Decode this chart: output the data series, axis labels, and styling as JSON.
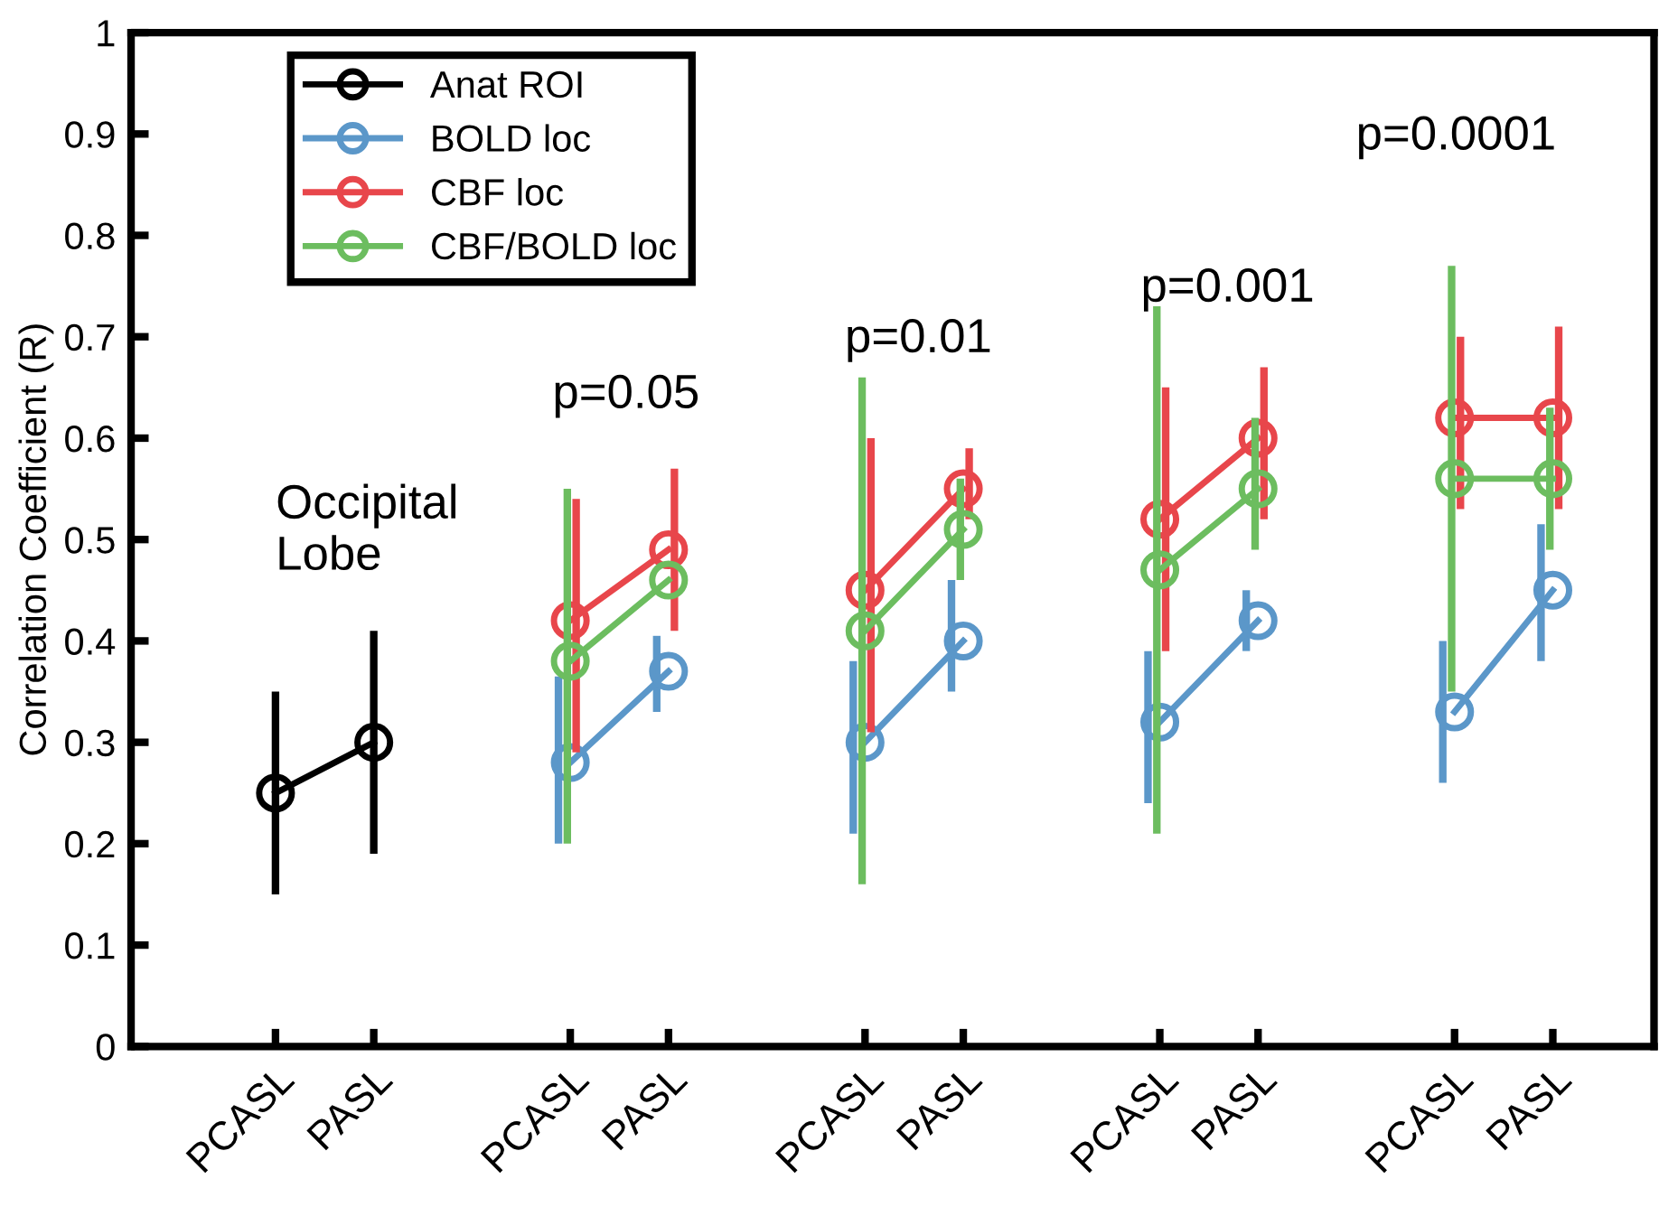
{
  "chart_data": {
    "type": "line",
    "ylabel": "Correlation Coefficient (R)",
    "categories": [
      "PCASL",
      "PASL",
      null,
      "PCASL",
      "PASL",
      null,
      "PCASL",
      "PASL",
      null,
      "PCASL",
      "PASL",
      null,
      "PCASL",
      "PASL"
    ],
    "ylim": [
      0,
      1
    ],
    "yticks": [
      0,
      0.1,
      0.2,
      0.3,
      0.4,
      0.5,
      0.6,
      0.7,
      0.8,
      0.9,
      1
    ],
    "grid": false,
    "legend": "top left",
    "marker": "circle",
    "line_style": "solid",
    "series": [
      {
        "name": "Anat ROI",
        "color": "#000000",
        "values": [
          0.25,
          0.3,
          null,
          null,
          null,
          null,
          null,
          null,
          null,
          null,
          null,
          null,
          null,
          null
        ],
        "errors": [
          [
            0.15,
            0.35
          ],
          [
            0.19,
            0.41
          ],
          null,
          null,
          null,
          null,
          null,
          null,
          null,
          null,
          null,
          null,
          null,
          null
        ]
      },
      {
        "name": "BOLD loc",
        "color": "#5b97c9",
        "values": [
          null,
          null,
          null,
          0.28,
          0.37,
          null,
          0.3,
          0.4,
          null,
          0.32,
          0.42,
          null,
          0.33,
          0.45
        ],
        "errors": [
          null,
          null,
          null,
          [
            0.2,
            0.365
          ],
          [
            0.33,
            0.405
          ],
          null,
          [
            0.21,
            0.38
          ],
          [
            0.35,
            0.46
          ],
          null,
          [
            0.24,
            0.39
          ],
          [
            0.39,
            0.45
          ],
          null,
          [
            0.26,
            0.4
          ],
          [
            0.38,
            0.515
          ]
        ]
      },
      {
        "name": "CBF loc",
        "color": "#e8464b",
        "values": [
          null,
          null,
          null,
          0.42,
          0.49,
          null,
          0.45,
          0.55,
          null,
          0.52,
          0.6,
          null,
          0.62,
          0.62
        ],
        "errors": [
          null,
          null,
          null,
          [
            0.29,
            0.54
          ],
          [
            0.41,
            0.57
          ],
          null,
          [
            0.31,
            0.6
          ],
          [
            0.52,
            0.59
          ],
          null,
          [
            0.39,
            0.65
          ],
          [
            0.52,
            0.67
          ],
          null,
          [
            0.53,
            0.7
          ],
          [
            0.53,
            0.71
          ]
        ]
      },
      {
        "name": "CBF/BOLD loc",
        "color": "#6cbd5f",
        "values": [
          null,
          null,
          null,
          0.38,
          0.46,
          null,
          0.41,
          0.51,
          null,
          0.47,
          0.55,
          null,
          0.56,
          0.56
        ],
        "errors": [
          null,
          null,
          null,
          [
            0.2,
            0.55
          ],
          null,
          null,
          [
            0.16,
            0.66
          ],
          [
            0.46,
            0.56
          ],
          null,
          [
            0.21,
            0.73
          ],
          [
            0.49,
            0.62
          ],
          null,
          [
            0.35,
            0.77
          ],
          [
            0.49,
            0.63
          ]
        ]
      }
    ],
    "annotations": [
      "Occipital\nLobe",
      "p=0.05",
      "p=0.01",
      "p=0.001",
      "p=0.0001"
    ]
  }
}
